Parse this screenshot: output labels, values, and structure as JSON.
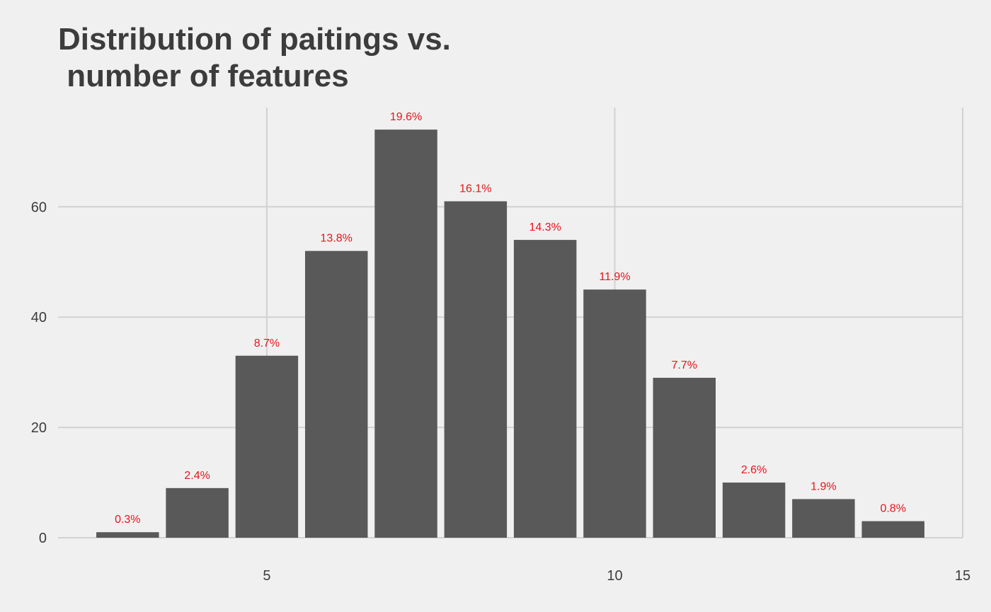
{
  "chart_data": {
    "type": "bar",
    "title": "Distribution of paitings vs.\n number of features",
    "xlabel": "",
    "ylabel": "",
    "x": [
      3,
      4,
      5,
      6,
      7,
      8,
      9,
      10,
      11,
      12,
      13,
      14
    ],
    "values": [
      1,
      9,
      33,
      52,
      74,
      61,
      54,
      45,
      29,
      10,
      7,
      3
    ],
    "labels": [
      "0.3%",
      "2.4%",
      "8.7%",
      "13.8%",
      "19.6%",
      "16.1%",
      "14.3%",
      "11.9%",
      "7.7%",
      "2.6%",
      "1.9%",
      "0.8%"
    ],
    "xlim": [
      2,
      15
    ],
    "ylim": [
      0,
      78
    ],
    "xticks": [
      5,
      10,
      15
    ],
    "yticks": [
      0,
      20,
      40,
      60
    ],
    "grid": true,
    "colors": {
      "bar": "#595959",
      "label": "#e8141c",
      "grid": "#d2d2d2",
      "background": "#f0f0f0",
      "text": "#3c3c3c"
    }
  }
}
